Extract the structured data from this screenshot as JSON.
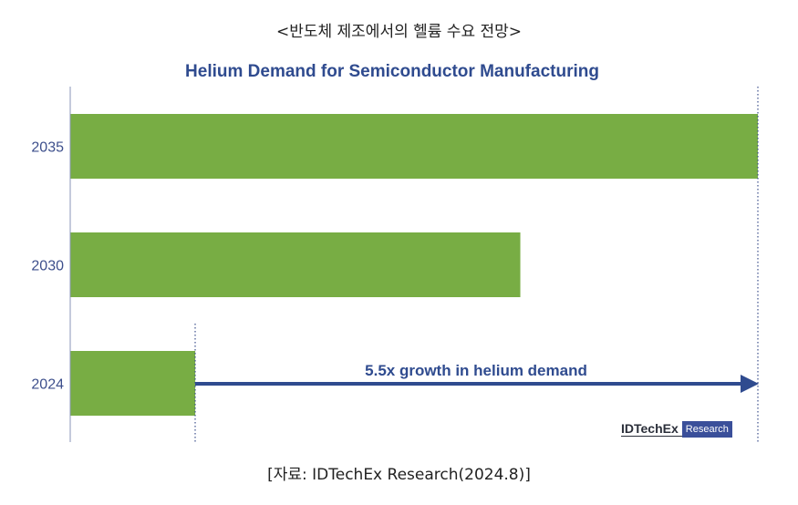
{
  "header_text": "<반도체 제조에서의 헬륨 수요 전망>",
  "footer_text": "[자료: IDTechEx Research(2024.8)]",
  "logo": {
    "main": "IDTechEx",
    "sub": "Research"
  },
  "colors": {
    "bar": "#78ad44",
    "title": "#2f4b8f",
    "axis_label": "#3d4f8c",
    "arrow": "#2f4b8f"
  },
  "chart_data": {
    "type": "bar",
    "orientation": "horizontal",
    "title": "Helium Demand for Semiconductor Manufacturing",
    "categories": [
      "2035",
      "2030",
      "2024"
    ],
    "values": [
      5.5,
      3.6,
      1.0
    ],
    "xlim": [
      0,
      5.5
    ],
    "grid": false,
    "annotation": "5.5x growth in helium demand"
  }
}
